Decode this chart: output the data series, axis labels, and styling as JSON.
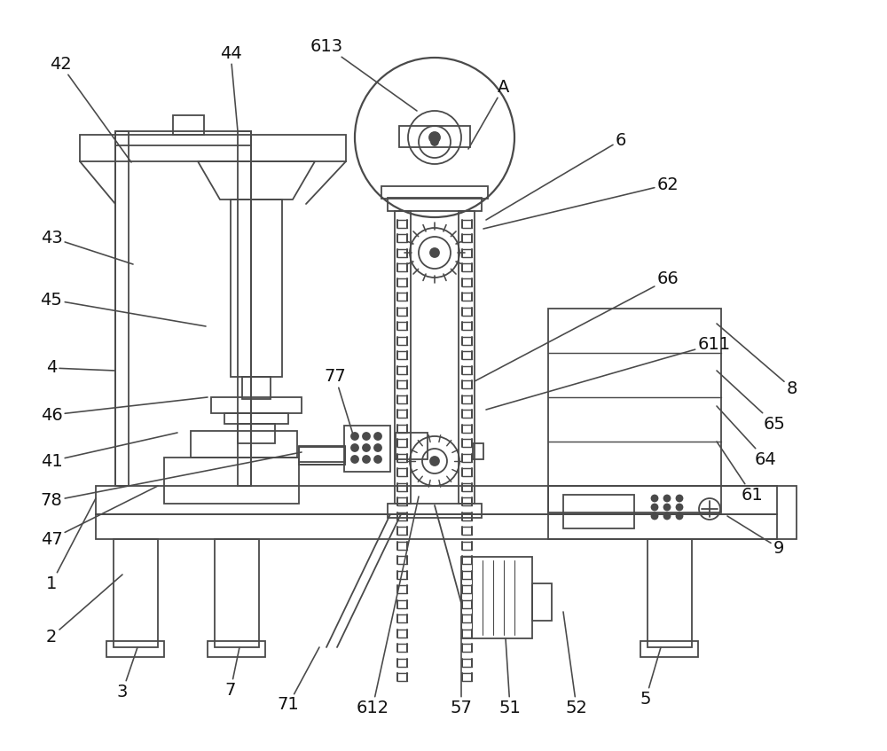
{
  "bg_color": "#ffffff",
  "lc": "#4a4a4a",
  "lw": 1.3,
  "fs": 14,
  "tc": "#111111",
  "annotations": [
    [
      "42",
      68,
      72,
      148,
      183
    ],
    [
      "44",
      260,
      60,
      268,
      148
    ],
    [
      "613",
      368,
      52,
      470,
      125
    ],
    [
      "A",
      568,
      98,
      528,
      168
    ],
    [
      "6",
      700,
      158,
      548,
      248
    ],
    [
      "62",
      753,
      208,
      545,
      258
    ],
    [
      "66",
      753,
      315,
      535,
      430
    ],
    [
      "611",
      805,
      388,
      548,
      462
    ],
    [
      "8",
      893,
      438,
      808,
      365
    ],
    [
      "65",
      873,
      478,
      808,
      418
    ],
    [
      "64",
      863,
      518,
      808,
      458
    ],
    [
      "61",
      848,
      558,
      808,
      498
    ],
    [
      "43",
      58,
      268,
      150,
      298
    ],
    [
      "45",
      58,
      338,
      232,
      368
    ],
    [
      "4",
      58,
      415,
      130,
      418
    ],
    [
      "46",
      58,
      468,
      234,
      448
    ],
    [
      "41",
      58,
      520,
      200,
      488
    ],
    [
      "78",
      58,
      565,
      340,
      510
    ],
    [
      "77",
      378,
      425,
      398,
      490
    ],
    [
      "47",
      58,
      608,
      178,
      548
    ],
    [
      "1",
      58,
      658,
      108,
      562
    ],
    [
      "2",
      58,
      718,
      138,
      648
    ],
    [
      "3",
      138,
      780,
      155,
      730
    ],
    [
      "7",
      260,
      778,
      270,
      730
    ],
    [
      "71",
      325,
      795,
      360,
      730
    ],
    [
      "612",
      420,
      798,
      472,
      560
    ],
    [
      "57",
      520,
      798,
      520,
      720
    ],
    [
      "51",
      575,
      798,
      570,
      720
    ],
    [
      "52",
      650,
      798,
      635,
      690
    ],
    [
      "5",
      728,
      788,
      745,
      730
    ],
    [
      "9",
      878,
      618,
      820,
      582
    ]
  ]
}
